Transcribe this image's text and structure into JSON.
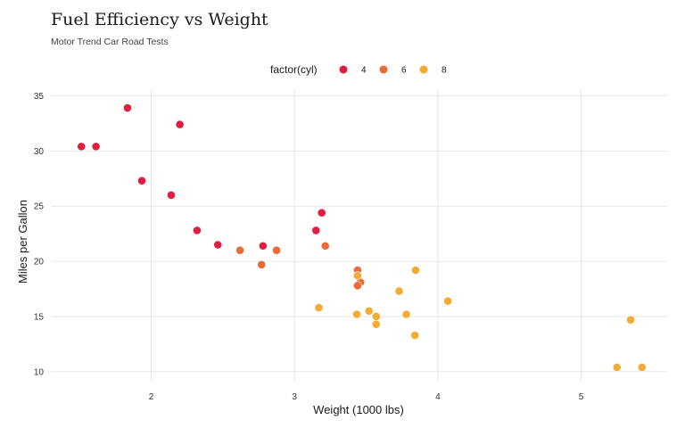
{
  "chart_data": {
    "type": "scatter",
    "title": "Fuel Efficiency vs Weight",
    "subtitle": "Motor Trend Car Road Tests",
    "xlabel": "Weight (1000 lbs)",
    "ylabel": "Miles per Gallon",
    "xlim": [
      1.3,
      5.6
    ],
    "ylim": [
      9.1,
      35.6
    ],
    "x_ticks": [
      2,
      3,
      4,
      5
    ],
    "y_ticks": [
      10,
      15,
      20,
      25,
      30,
      35
    ],
    "grid": true,
    "legend": {
      "title": "factor(cyl)",
      "placement": "top",
      "entries": [
        {
          "label": "4",
          "color": "#e01e3f"
        },
        {
          "label": "6",
          "color": "#ec6a36"
        },
        {
          "label": "8",
          "color": "#f4ab33"
        }
      ]
    },
    "series": [
      {
        "name": "4",
        "color": "#e01e3f",
        "points": [
          {
            "x": 2.32,
            "y": 22.8
          },
          {
            "x": 3.19,
            "y": 24.4
          },
          {
            "x": 3.15,
            "y": 22.8
          },
          {
            "x": 2.2,
            "y": 32.4
          },
          {
            "x": 1.615,
            "y": 30.4
          },
          {
            "x": 1.835,
            "y": 33.9
          },
          {
            "x": 2.465,
            "y": 21.5
          },
          {
            "x": 1.935,
            "y": 27.3
          },
          {
            "x": 2.14,
            "y": 26.0
          },
          {
            "x": 1.513,
            "y": 30.4
          },
          {
            "x": 2.78,
            "y": 21.4
          }
        ]
      },
      {
        "name": "6",
        "color": "#ec6a36",
        "points": [
          {
            "x": 2.62,
            "y": 21.0
          },
          {
            "x": 2.875,
            "y": 21.0
          },
          {
            "x": 3.215,
            "y": 21.4
          },
          {
            "x": 3.46,
            "y": 18.1
          },
          {
            "x": 3.44,
            "y": 19.2
          },
          {
            "x": 3.44,
            "y": 17.8
          },
          {
            "x": 2.77,
            "y": 19.7
          }
        ]
      },
      {
        "name": "8",
        "color": "#f4ab33",
        "points": [
          {
            "x": 3.44,
            "y": 18.7
          },
          {
            "x": 3.57,
            "y": 14.3
          },
          {
            "x": 4.07,
            "y": 16.4
          },
          {
            "x": 3.73,
            "y": 17.3
          },
          {
            "x": 3.78,
            "y": 15.2
          },
          {
            "x": 5.25,
            "y": 10.4
          },
          {
            "x": 5.424,
            "y": 10.4
          },
          {
            "x": 5.345,
            "y": 14.7
          },
          {
            "x": 3.52,
            "y": 15.5
          },
          {
            "x": 3.435,
            "y": 15.2
          },
          {
            "x": 3.84,
            "y": 13.3
          },
          {
            "x": 3.845,
            "y": 19.2
          },
          {
            "x": 3.17,
            "y": 15.8
          },
          {
            "x": 3.57,
            "y": 15.0
          }
        ]
      }
    ]
  }
}
